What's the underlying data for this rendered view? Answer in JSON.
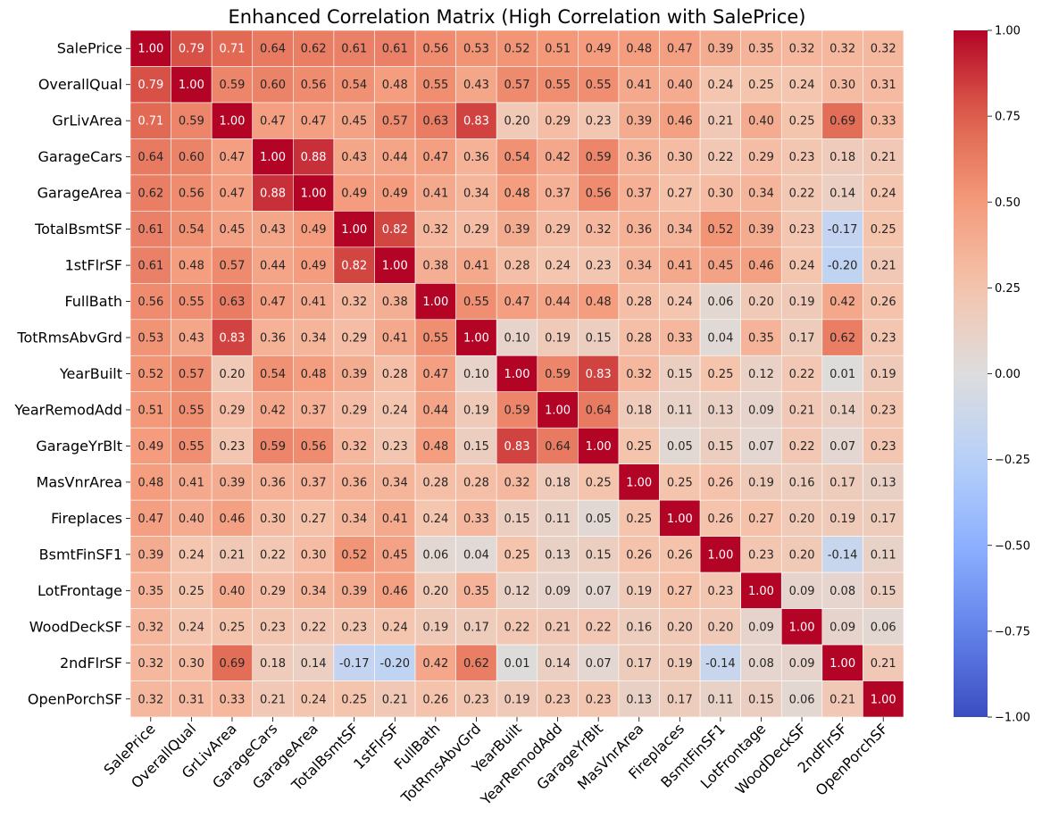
{
  "chart_data": {
    "type": "heatmap",
    "title": "Enhanced Correlation Matrix (High Correlation with SalePrice)",
    "labels": [
      "SalePrice",
      "OverallQual",
      "GrLivArea",
      "GarageCars",
      "GarageArea",
      "TotalBsmtSF",
      "1stFlrSF",
      "FullBath",
      "TotRmsAbvGrd",
      "YearBuilt",
      "YearRemodAdd",
      "GarageYrBlt",
      "MasVnrArea",
      "Fireplaces",
      "BsmtFinSF1",
      "LotFrontage",
      "WoodDeckSF",
      "2ndFlrSF",
      "OpenPorchSF"
    ],
    "values": [
      [
        1.0,
        0.79,
        0.71,
        0.64,
        0.62,
        0.61,
        0.61,
        0.56,
        0.53,
        0.52,
        0.51,
        0.49,
        0.48,
        0.47,
        0.39,
        0.35,
        0.32,
        0.32,
        0.32
      ],
      [
        0.79,
        1.0,
        0.59,
        0.6,
        0.56,
        0.54,
        0.48,
        0.55,
        0.43,
        0.57,
        0.55,
        0.55,
        0.41,
        0.4,
        0.24,
        0.25,
        0.24,
        0.3,
        0.31
      ],
      [
        0.71,
        0.59,
        1.0,
        0.47,
        0.47,
        0.45,
        0.57,
        0.63,
        0.83,
        0.2,
        0.29,
        0.23,
        0.39,
        0.46,
        0.21,
        0.4,
        0.25,
        0.69,
        0.33
      ],
      [
        0.64,
        0.6,
        0.47,
        1.0,
        0.88,
        0.43,
        0.44,
        0.47,
        0.36,
        0.54,
        0.42,
        0.59,
        0.36,
        0.3,
        0.22,
        0.29,
        0.23,
        0.18,
        0.21
      ],
      [
        0.62,
        0.56,
        0.47,
        0.88,
        1.0,
        0.49,
        0.49,
        0.41,
        0.34,
        0.48,
        0.37,
        0.56,
        0.37,
        0.27,
        0.3,
        0.34,
        0.22,
        0.14,
        0.24
      ],
      [
        0.61,
        0.54,
        0.45,
        0.43,
        0.49,
        1.0,
        0.82,
        0.32,
        0.29,
        0.39,
        0.29,
        0.32,
        0.36,
        0.34,
        0.52,
        0.39,
        0.23,
        -0.17,
        0.25
      ],
      [
        0.61,
        0.48,
        0.57,
        0.44,
        0.49,
        0.82,
        1.0,
        0.38,
        0.41,
        0.28,
        0.24,
        0.23,
        0.34,
        0.41,
        0.45,
        0.46,
        0.24,
        -0.2,
        0.21
      ],
      [
        0.56,
        0.55,
        0.63,
        0.47,
        0.41,
        0.32,
        0.38,
        1.0,
        0.55,
        0.47,
        0.44,
        0.48,
        0.28,
        0.24,
        0.06,
        0.2,
        0.19,
        0.42,
        0.26
      ],
      [
        0.53,
        0.43,
        0.83,
        0.36,
        0.34,
        0.29,
        0.41,
        0.55,
        1.0,
        0.1,
        0.19,
        0.15,
        0.28,
        0.33,
        0.04,
        0.35,
        0.17,
        0.62,
        0.23
      ],
      [
        0.52,
        0.57,
        0.2,
        0.54,
        0.48,
        0.39,
        0.28,
        0.47,
        0.1,
        1.0,
        0.59,
        0.83,
        0.32,
        0.15,
        0.25,
        0.12,
        0.22,
        0.01,
        0.19
      ],
      [
        0.51,
        0.55,
        0.29,
        0.42,
        0.37,
        0.29,
        0.24,
        0.44,
        0.19,
        0.59,
        1.0,
        0.64,
        0.18,
        0.11,
        0.13,
        0.09,
        0.21,
        0.14,
        0.23
      ],
      [
        0.49,
        0.55,
        0.23,
        0.59,
        0.56,
        0.32,
        0.23,
        0.48,
        0.15,
        0.83,
        0.64,
        1.0,
        0.25,
        0.05,
        0.15,
        0.07,
        0.22,
        0.07,
        0.23
      ],
      [
        0.48,
        0.41,
        0.39,
        0.36,
        0.37,
        0.36,
        0.34,
        0.28,
        0.28,
        0.32,
        0.18,
        0.25,
        1.0,
        0.25,
        0.26,
        0.19,
        0.16,
        0.17,
        0.13
      ],
      [
        0.47,
        0.4,
        0.46,
        0.3,
        0.27,
        0.34,
        0.41,
        0.24,
        0.33,
        0.15,
        0.11,
        0.05,
        0.25,
        1.0,
        0.26,
        0.27,
        0.2,
        0.19,
        0.17
      ],
      [
        0.39,
        0.24,
        0.21,
        0.22,
        0.3,
        0.52,
        0.45,
        0.06,
        0.04,
        0.25,
        0.13,
        0.15,
        0.26,
        0.26,
        1.0,
        0.23,
        0.2,
        -0.14,
        0.11
      ],
      [
        0.35,
        0.25,
        0.4,
        0.29,
        0.34,
        0.39,
        0.46,
        0.2,
        0.35,
        0.12,
        0.09,
        0.07,
        0.19,
        0.27,
        0.23,
        1.0,
        0.09,
        0.08,
        0.15
      ],
      [
        0.32,
        0.24,
        0.25,
        0.23,
        0.22,
        0.23,
        0.24,
        0.19,
        0.17,
        0.22,
        0.21,
        0.22,
        0.16,
        0.2,
        0.2,
        0.09,
        1.0,
        0.09,
        0.06
      ],
      [
        0.32,
        0.3,
        0.69,
        0.18,
        0.14,
        -0.17,
        -0.2,
        0.42,
        0.62,
        0.01,
        0.14,
        0.07,
        0.17,
        0.19,
        -0.14,
        0.08,
        0.09,
        1.0,
        0.21
      ],
      [
        0.32,
        0.31,
        0.33,
        0.21,
        0.24,
        0.25,
        0.21,
        0.26,
        0.23,
        0.19,
        0.23,
        0.23,
        0.13,
        0.17,
        0.11,
        0.15,
        0.06,
        0.21,
        1.0
      ]
    ],
    "colormap": "coolwarm",
    "vmin": -1.0,
    "vmax": 1.0,
    "colorbar_ticks": [
      "−1.00",
      "−0.75",
      "−0.50",
      "−0.25",
      "0.00",
      "0.25",
      "0.50",
      "0.75",
      "1.00"
    ],
    "annotation_format": "0.00"
  }
}
